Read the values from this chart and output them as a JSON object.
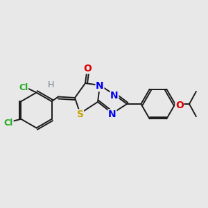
{
  "background_color": "#e8e8e8",
  "bond_color": "#1a1a1a",
  "bond_width": 1.4,
  "dbo": 0.008,
  "fig_width": 3.0,
  "fig_height": 3.0,
  "dpi": 100,
  "xlim": [
    0.0,
    1.0
  ],
  "ylim": [
    0.0,
    1.0
  ],
  "S_color": "#c8a000",
  "N_color": "#0000ee",
  "O_color": "#dd0000",
  "Cl_color": "#22aa22",
  "H_color": "#708090",
  "C_color": "#1a1a1a"
}
